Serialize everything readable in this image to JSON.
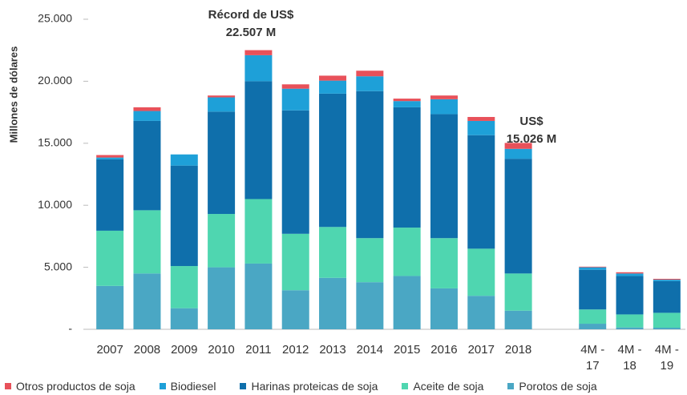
{
  "chart_data": {
    "type": "stacked_bar",
    "y_label": "Millones de dólares",
    "categories": [
      "2007",
      "2008",
      "2009",
      "2010",
      "2011",
      "2012",
      "2013",
      "2014",
      "2015",
      "2016",
      "2017",
      "2018",
      null,
      "4M - 17",
      "4M - 18",
      "4M - 19"
    ],
    "series": [
      {
        "name": "Porotos de soja",
        "color": "#4aa7c4",
        "values": [
          3500,
          4500,
          1700,
          5000,
          5300,
          3150,
          4150,
          3800,
          4300,
          3300,
          2700,
          1500,
          null,
          450,
          150,
          130
        ]
      },
      {
        "name": "Aceite de soja",
        "color": "#4fd6b0",
        "values": [
          4450,
          5100,
          3400,
          4300,
          5200,
          4550,
          4100,
          3550,
          3900,
          4050,
          3800,
          3000,
          null,
          1150,
          1050,
          1200
        ]
      },
      {
        "name": "Harinas proteicas de soja",
        "color": "#0f6fab",
        "values": [
          5750,
          7200,
          8100,
          8250,
          9500,
          9950,
          10750,
          11850,
          9700,
          10000,
          9150,
          9250,
          null,
          3200,
          3100,
          2550
        ]
      },
      {
        "name": "Biodiesel",
        "color": "#1ea0d8",
        "values": [
          150,
          800,
          900,
          1150,
          2100,
          1750,
          1050,
          1200,
          500,
          1200,
          1150,
          800,
          null,
          200,
          200,
          120
        ]
      },
      {
        "name": "Otros productos de soja",
        "color": "#e8515a",
        "values": [
          200,
          300,
          0,
          150,
          407,
          350,
          400,
          450,
          200,
          300,
          320,
          476,
          null,
          50,
          100,
          70
        ]
      }
    ],
    "ylim": [
      0,
      25000
    ],
    "yticks": [
      {
        "value": 0,
        "label": "-"
      },
      {
        "value": 5000,
        "label": "5.000"
      },
      {
        "value": 10000,
        "label": "10.000"
      },
      {
        "value": 15000,
        "label": "15.000"
      },
      {
        "value": 20000,
        "label": "20.000"
      },
      {
        "value": 25000,
        "label": "25.000"
      }
    ],
    "legend_order": [
      4,
      3,
      2,
      1,
      0
    ],
    "annotations": [
      {
        "lines": [
          "Récord de US$",
          "22.507 M"
        ]
      },
      {
        "lines": [
          "US$",
          "15.026 M"
        ]
      }
    ]
  }
}
